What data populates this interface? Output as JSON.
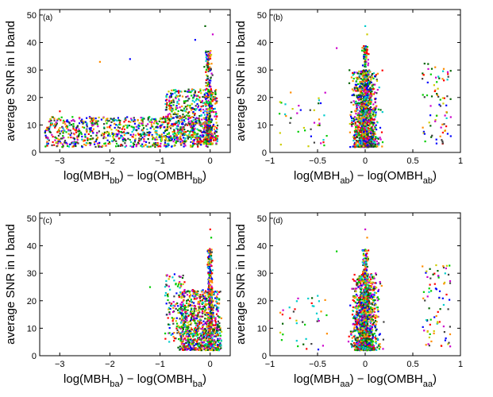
{
  "figure": {
    "description_note": "Four scatter panels of average SNR vs log mass-ratio"
  },
  "palette": [
    "#0000ff",
    "#ff0000",
    "#00cc00",
    "#00cccc",
    "#cc00cc",
    "#cccc00",
    "#404040",
    "#006400",
    "#ff8c00"
  ],
  "chart_data": [
    {
      "type": "scatter",
      "panel_tag": "(a)",
      "xlabel_main": "log(MBH",
      "xlabel_sub1": "bb",
      "xlabel_mid": ") − log(OMBH",
      "xlabel_sub2": "bb",
      "xlabel_end": ")",
      "ylabel": "average SNR in I band",
      "xlim": [
        -3.4,
        0.4
      ],
      "ylim": [
        0,
        52
      ],
      "xticks": [
        -3,
        -2,
        -1,
        0
      ],
      "xtick_labels": [
        "−3",
        "−2",
        "−1",
        "0"
      ],
      "yticks": [
        0,
        10,
        20,
        30,
        40,
        50
      ],
      "ytick_labels": [
        "0",
        "10",
        "20",
        "30",
        "40",
        "50"
      ],
      "pattern": "wide"
    },
    {
      "type": "scatter",
      "panel_tag": "(b)",
      "xlabel_main": "log(MBH",
      "xlabel_sub1": "ab",
      "xlabel_mid": ") − log(OMBH",
      "xlabel_sub2": "ab",
      "xlabel_end": ")",
      "ylabel": "average SNR in I band",
      "xlim": [
        -1,
        1
      ],
      "ylim": [
        0,
        52
      ],
      "xticks": [
        -1,
        -0.5,
        0,
        0.5,
        1
      ],
      "xtick_labels": [
        "−1",
        "−0.5",
        "0",
        "0.5",
        "1"
      ],
      "yticks": [
        0,
        10,
        20,
        30,
        40,
        50
      ],
      "ytick_labels": [
        "0",
        "10",
        "20",
        "30",
        "40",
        "50"
      ],
      "pattern": "centered"
    },
    {
      "type": "scatter",
      "panel_tag": "(c)",
      "xlabel_main": "log(MBH",
      "xlabel_sub1": "ba",
      "xlabel_mid": ") − log(OMBH",
      "xlabel_sub2": "ba",
      "xlabel_end": ")",
      "ylabel": "average SNR in I band",
      "xlim": [
        -3.4,
        0.4
      ],
      "ylim": [
        0,
        52
      ],
      "xticks": [
        -3,
        -2,
        -1,
        0
      ],
      "xtick_labels": [
        "−3",
        "−2",
        "−1",
        "0"
      ],
      "yticks": [
        0,
        10,
        20,
        30,
        40,
        50
      ],
      "ytick_labels": [
        "0",
        "10",
        "20",
        "30",
        "40",
        "50"
      ],
      "pattern": "narrow"
    },
    {
      "type": "scatter",
      "panel_tag": "(d)",
      "xlabel_main": "log(MBH",
      "xlabel_sub1": "aa",
      "xlabel_mid": ") − log(OMBH",
      "xlabel_sub2": "aa",
      "xlabel_end": ")",
      "ylabel": "average SNR in I band",
      "xlim": [
        -1,
        1
      ],
      "ylim": [
        0,
        52
      ],
      "xticks": [
        -1,
        -0.5,
        0,
        0.5,
        1
      ],
      "xtick_labels": [
        "−1",
        "−0.5",
        "0",
        "0.5",
        "1"
      ],
      "yticks": [
        0,
        10,
        20,
        30,
        40,
        50
      ],
      "ytick_labels": [
        "0",
        "10",
        "20",
        "30",
        "40",
        "50"
      ],
      "pattern": "centered"
    }
  ]
}
